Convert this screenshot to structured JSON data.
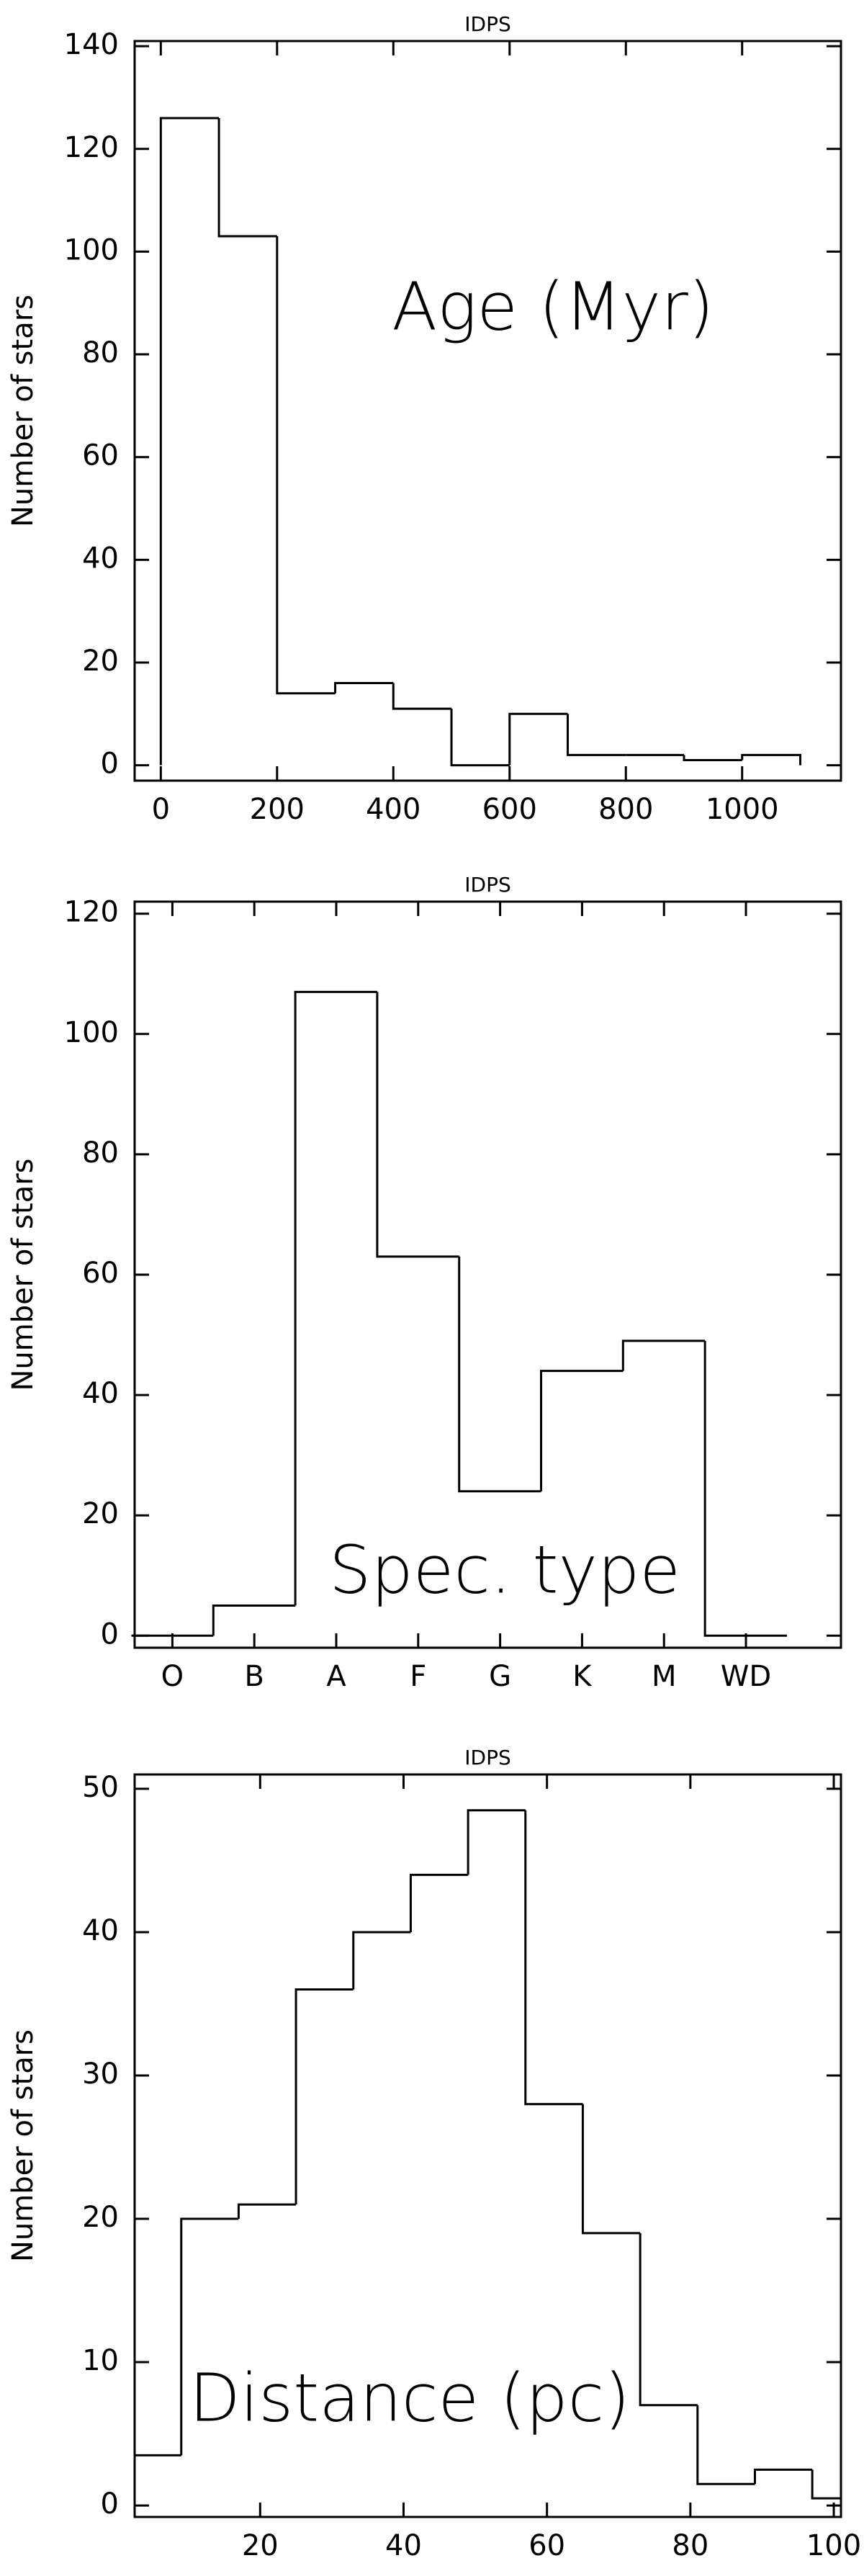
{
  "chart_data": [
    {
      "type": "histogram",
      "title": "IDPS",
      "y_label": "Number of stars",
      "annotation": "Age (Myr)",
      "bins": [
        0,
        100,
        200,
        300,
        400,
        500,
        600,
        700,
        800,
        900,
        1000,
        1100
      ],
      "values": [
        126,
        103,
        14,
        16,
        11,
        0,
        10,
        2,
        2,
        1,
        2
      ],
      "xlim": [
        -45,
        1170
      ],
      "ylim": [
        -3,
        141
      ],
      "xticks": [
        0,
        200,
        400,
        600,
        800,
        1000
      ],
      "yticks": [
        0,
        20,
        40,
        60,
        80,
        100,
        120,
        140
      ],
      "color": "#000000"
    },
    {
      "type": "bar",
      "title": "IDPS",
      "y_label": "Number of stars",
      "annotation": "Spec. type",
      "categories": [
        "O",
        "B",
        "A",
        "F",
        "G",
        "K",
        "M",
        "WD"
      ],
      "values": [
        0,
        5,
        107,
        63,
        24,
        44,
        49,
        0
      ],
      "ylim": [
        -2,
        122
      ],
      "yticks": [
        0,
        20,
        40,
        60,
        80,
        100,
        120
      ],
      "color": "#000000"
    },
    {
      "type": "histogram",
      "title": "IDPS",
      "y_label": "Number of stars",
      "annotation": "Distance (pc)",
      "bins": [
        1,
        9,
        17,
        25,
        33,
        41,
        49,
        57,
        65,
        73,
        81,
        89,
        97,
        105
      ],
      "values": [
        3.5,
        20,
        21,
        36,
        40,
        44,
        48.5,
        28,
        19,
        7,
        1.5,
        2.5,
        0.5
      ],
      "xlim": [
        2.5,
        101
      ],
      "ylim": [
        -0.8,
        51
      ],
      "xticks": [
        20,
        40,
        60,
        80,
        100
      ],
      "yticks": [
        0,
        10,
        20,
        30,
        40,
        50
      ],
      "color": "#000000"
    }
  ]
}
